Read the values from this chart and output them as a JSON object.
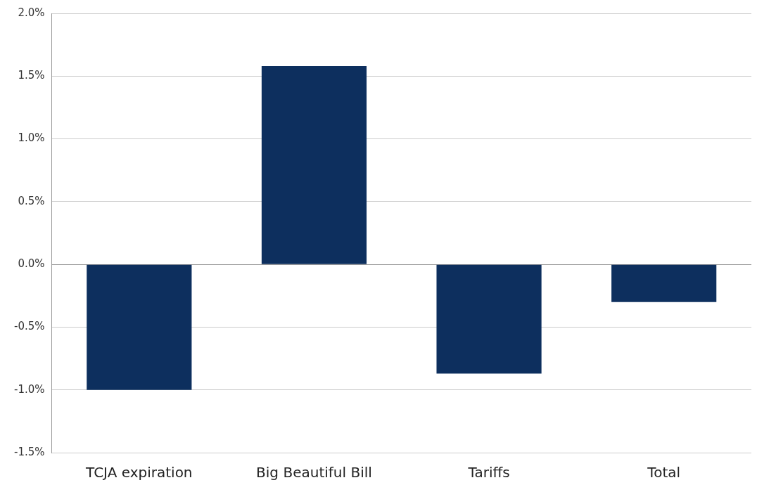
{
  "chart_data": {
    "type": "bar",
    "categories": [
      "TCJA expiration",
      "Big Beautiful Bill",
      "Tariffs",
      "Total"
    ],
    "values": [
      -1.0,
      1.58,
      -0.87,
      -0.3
    ],
    "color": "#0d2f5e",
    "ylim": [
      -1.5,
      2.0
    ],
    "yticks": [
      {
        "value": -1.5,
        "label": "-1.5%"
      },
      {
        "value": -1.0,
        "label": "-1.0%"
      },
      {
        "value": -0.5,
        "label": "-0.5%"
      },
      {
        "value": 0,
        "label": "0.0%"
      },
      {
        "value": 0.5,
        "label": "0.5%"
      },
      {
        "value": 1.0,
        "label": "1.0%"
      },
      {
        "value": 1.5,
        "label": "1.5%"
      },
      {
        "value": 2.0,
        "label": "2.0%"
      }
    ],
    "grid": "y",
    "legend": false
  }
}
